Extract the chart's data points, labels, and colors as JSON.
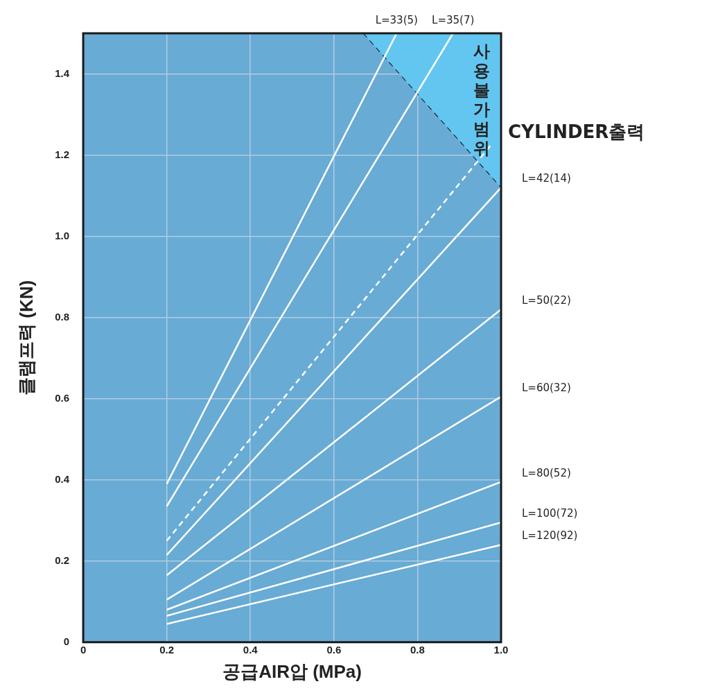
{
  "chart_data": {
    "type": "line",
    "xlabel": "공급AIR압 (MPa)",
    "ylabel": "클램프력 (KN)",
    "xlim": [
      0,
      1.0
    ],
    "xticks": [
      {
        "value": 0,
        "label": "0"
      },
      0.2,
      0.4,
      0.6,
      0.8,
      {
        "value": 1.0,
        "label": "1.0"
      }
    ],
    "ylim": [
      0,
      1.5
    ],
    "yticks": [
      {
        "value": 0,
        "label": "0"
      },
      0.2,
      0.4,
      0.6,
      0.8,
      {
        "value": 1.0,
        "label": "1.0"
      },
      1.2,
      1.4
    ],
    "grid": true,
    "legend": false,
    "marker": "none",
    "series": [
      {
        "name": "사용불가범위",
        "type": "area",
        "color": "#63c6f0",
        "line_style": "dashed",
        "x": [
          0.67,
          1.0
        ],
        "values": [
          1.5,
          1.12
        ]
      },
      {
        "name": "L=33(5)",
        "color": "#ffffff",
        "x": [
          0.2,
          0.75
        ],
        "values": [
          0.39,
          1.5
        ]
      },
      {
        "name": "L=35(7)",
        "color": "#ffffff",
        "x": [
          0.2,
          0.885
        ],
        "values": [
          0.335,
          1.5
        ]
      },
      {
        "name": "CYLINDER출력",
        "color": "#ffffff",
        "line_style": "dashed",
        "x": [
          0.2,
          0.98
        ],
        "values": [
          0.25,
          1.23
        ]
      },
      {
        "name": "L=42(14)",
        "color": "#ffffff",
        "x": [
          0.2,
          1.0
        ],
        "values": [
          0.215,
          1.12
        ]
      },
      {
        "name": "L=50(22)",
        "color": "#ffffff",
        "x": [
          0.2,
          1.0
        ],
        "values": [
          0.165,
          0.82
        ]
      },
      {
        "name": "L=60(32)",
        "color": "#ffffff",
        "x": [
          0.2,
          1.0
        ],
        "values": [
          0.105,
          0.605
        ]
      },
      {
        "name": "L=80(52)",
        "color": "#ffffff",
        "x": [
          0.2,
          1.0
        ],
        "values": [
          0.08,
          0.395
        ]
      },
      {
        "name": "L=100(72)",
        "color": "#ffffff",
        "x": [
          0.2,
          1.0
        ],
        "values": [
          0.065,
          0.295
        ]
      },
      {
        "name": "L=120(92)",
        "color": "#ffffff",
        "x": [
          0.2,
          1.0
        ],
        "values": [
          0.045,
          0.24
        ]
      }
    ]
  }
}
